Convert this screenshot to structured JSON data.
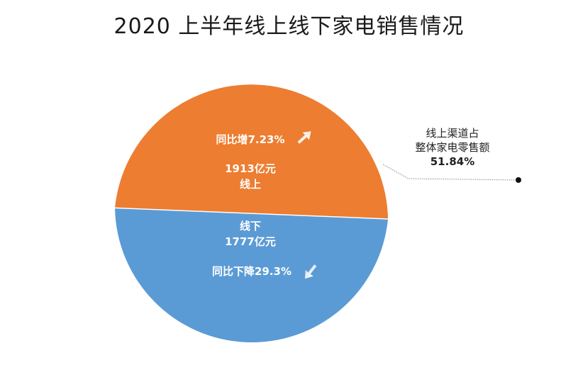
{
  "chart_data": {
    "type": "pie",
    "title": "2020 上半年线上线下家电销售情况",
    "categories": [
      "线上",
      "线下"
    ],
    "values": [
      1913,
      1777
    ],
    "unit": "亿元",
    "colors": [
      "#ED7D31",
      "#5B9BD5"
    ],
    "slices": [
      {
        "name": "线上",
        "value_label": "1913亿元",
        "change_label": "同比增7.23%",
        "trend": "up",
        "color": "#ED7D31"
      },
      {
        "name": "线下",
        "value_label": "1777亿元",
        "change_label": "同比下降29.3%",
        "trend": "down",
        "color": "#5B9BD5"
      }
    ],
    "annotation": {
      "line1": "线上渠道占",
      "line2": "整体家电零售额",
      "value": "51.84%"
    },
    "legend": "none"
  }
}
